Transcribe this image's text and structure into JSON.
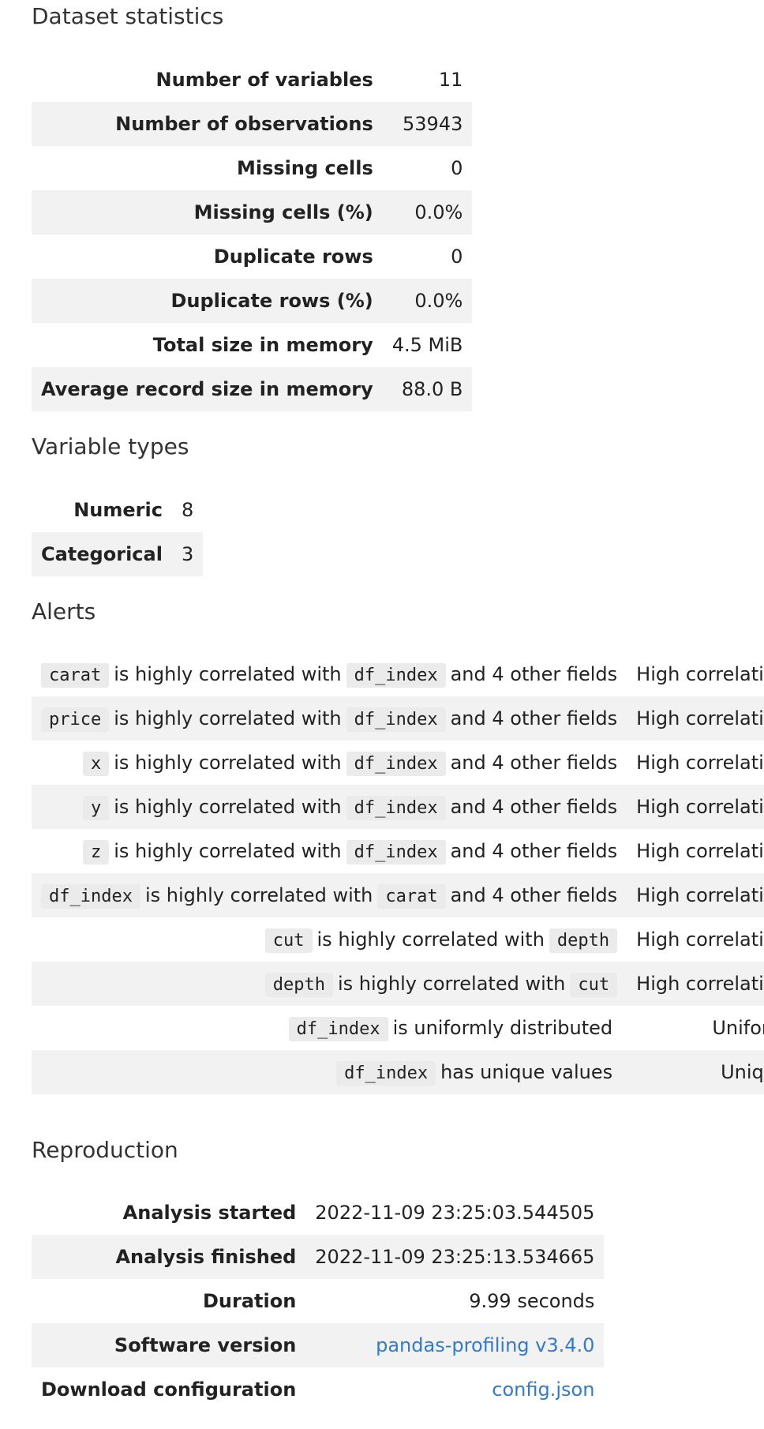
{
  "dataset_statistics": {
    "title": "Dataset statistics",
    "rows": [
      {
        "label": "Number of variables",
        "value": "11"
      },
      {
        "label": "Number of observations",
        "value": "53943"
      },
      {
        "label": "Missing cells",
        "value": "0"
      },
      {
        "label": "Missing cells (%)",
        "value": "0.0%"
      },
      {
        "label": "Duplicate rows",
        "value": "0"
      },
      {
        "label": "Duplicate rows (%)",
        "value": "0.0%"
      },
      {
        "label": "Total size in memory",
        "value": "4.5 MiB"
      },
      {
        "label": "Average record size in memory",
        "value": "88.0 B"
      }
    ]
  },
  "variable_types": {
    "title": "Variable types",
    "rows": [
      {
        "label": "Numeric",
        "value": "8"
      },
      {
        "label": "Categorical",
        "value": "3"
      }
    ]
  },
  "alerts": {
    "title": "Alerts",
    "rows": [
      {
        "var": "carat",
        "text": "is highly correlated with",
        "other": "df_index",
        "tail": "and 4 other fields",
        "type": "High correlation"
      },
      {
        "var": "price",
        "text": "is highly correlated with",
        "other": "df_index",
        "tail": "and 4 other fields",
        "type": "High correlation"
      },
      {
        "var": "x",
        "text": "is highly correlated with",
        "other": "df_index",
        "tail": "and 4 other fields",
        "type": "High correlation"
      },
      {
        "var": "y",
        "text": "is highly correlated with",
        "other": "df_index",
        "tail": "and 4 other fields",
        "type": "High correlation"
      },
      {
        "var": "z",
        "text": "is highly correlated with",
        "other": "df_index",
        "tail": "and 4 other fields",
        "type": "High correlation"
      },
      {
        "var": "df_index",
        "text": "is highly correlated with",
        "other": "carat",
        "tail": "and 4 other fields",
        "type": "High correlation"
      },
      {
        "var": "cut",
        "text": "is highly correlated with",
        "other": "depth",
        "tail": "",
        "type": "High correlation"
      },
      {
        "var": "depth",
        "text": "is highly correlated with",
        "other": "cut",
        "tail": "",
        "type": "High correlation"
      },
      {
        "var": "df_index",
        "text": "is uniformly distributed",
        "other": "",
        "tail": "",
        "type": "Uniform"
      },
      {
        "var": "df_index",
        "text": "has unique values",
        "other": "",
        "tail": "",
        "type": "Unique"
      }
    ]
  },
  "reproduction": {
    "title": "Reproduction",
    "rows": [
      {
        "label": "Analysis started",
        "value": "2022-11-09 23:25:03.544505",
        "link": false
      },
      {
        "label": "Analysis finished",
        "value": "2022-11-09 23:25:13.534665",
        "link": false
      },
      {
        "label": "Duration",
        "value": "9.99 seconds",
        "link": false
      },
      {
        "label": "Software version",
        "value": "pandas-profiling v3.4.0",
        "link": true
      },
      {
        "label": "Download configuration",
        "value": "config.json",
        "link": true
      }
    ]
  }
}
